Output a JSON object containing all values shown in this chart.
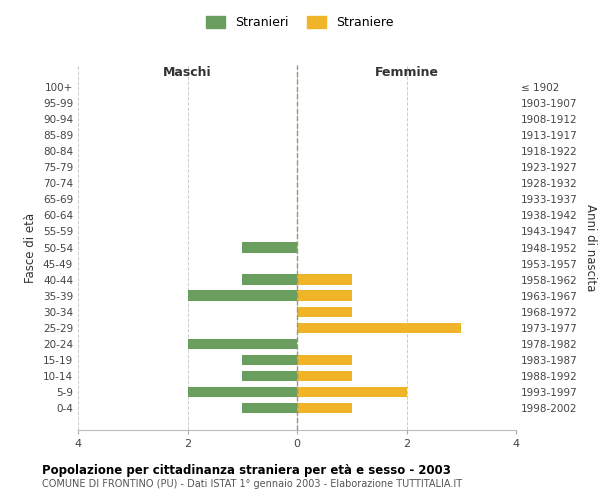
{
  "age_groups": [
    "100+",
    "95-99",
    "90-94",
    "85-89",
    "80-84",
    "75-79",
    "70-74",
    "65-69",
    "60-64",
    "55-59",
    "50-54",
    "45-49",
    "40-44",
    "35-39",
    "30-34",
    "25-29",
    "20-24",
    "15-19",
    "10-14",
    "5-9",
    "0-4"
  ],
  "birth_years": [
    "≤ 1902",
    "1903-1907",
    "1908-1912",
    "1913-1917",
    "1918-1922",
    "1923-1927",
    "1928-1932",
    "1933-1937",
    "1938-1942",
    "1943-1947",
    "1948-1952",
    "1953-1957",
    "1958-1962",
    "1963-1967",
    "1968-1972",
    "1973-1977",
    "1978-1982",
    "1983-1987",
    "1988-1992",
    "1993-1997",
    "1998-2002"
  ],
  "maschi": [
    0,
    0,
    0,
    0,
    0,
    0,
    0,
    0,
    0,
    0,
    1,
    0,
    1,
    2,
    0,
    0,
    2,
    1,
    1,
    2,
    1
  ],
  "femmine": [
    0,
    0,
    0,
    0,
    0,
    0,
    0,
    0,
    0,
    0,
    0,
    0,
    1,
    1,
    1,
    3,
    0,
    1,
    1,
    2,
    1
  ],
  "color_maschi": "#6a9e5e",
  "color_femmine": "#f0b429",
  "title": "Popolazione per cittadinanza straniera per età e sesso - 2003",
  "title_bold_part": "2003",
  "subtitle": "COMUNE DI FRONTINO (PU) - Dati ISTAT 1° gennaio 2003 - Elaborazione TUTTITALIA.IT",
  "ylabel_left": "Fasce di età",
  "ylabel_right": "Anni di nascita",
  "xlabel_maschi": "Maschi",
  "xlabel_femmine": "Femmine",
  "legend_maschi": "Stranieri",
  "legend_femmine": "Straniere",
  "xlim": 4,
  "background_color": "#ffffff",
  "grid_color": "#cccccc",
  "zero_line_color": "#999966"
}
